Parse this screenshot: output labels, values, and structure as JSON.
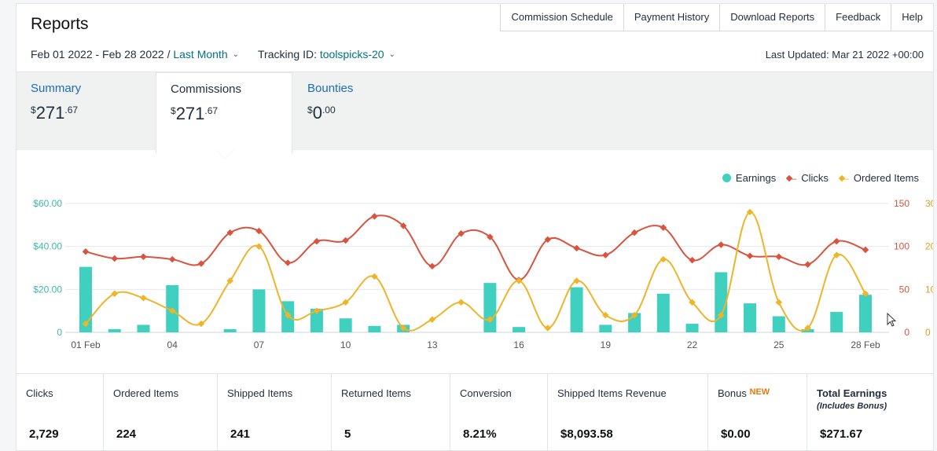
{
  "header": {
    "title": "Reports"
  },
  "toplinks": [
    "Commission Schedule",
    "Payment History",
    "Download Reports",
    "Feedback",
    "Help"
  ],
  "filters": {
    "date_range": "Feb 01 2022 - Feb 28 2022 /",
    "period": "Last Month",
    "tracking_label": "Tracking ID:",
    "tracking_id": "toolspicks-20"
  },
  "last_updated": "Last Updated: Mar 21 2022 +00:00",
  "tabs": [
    {
      "name": "Summary",
      "currency": "$",
      "whole": "271",
      "cents": ".67"
    },
    {
      "name": "Commissions",
      "currency": "$",
      "whole": "271",
      "cents": ".67"
    },
    {
      "name": "Bounties",
      "currency": "$",
      "whole": "0",
      "cents": ".00"
    }
  ],
  "legend": [
    {
      "label": "Earnings",
      "color": "#3fd0c0"
    },
    {
      "label": "Clicks",
      "color": "#d9533f"
    },
    {
      "label": "Ordered Items",
      "color": "#f0b429"
    }
  ],
  "chart_data": {
    "type": "bar",
    "x": [
      "01 Feb",
      "02",
      "03",
      "04",
      "05",
      "06",
      "07",
      "08",
      "09",
      "10",
      "11",
      "12",
      "13",
      "14",
      "15",
      "16",
      "17",
      "18",
      "19",
      "20",
      "21",
      "22",
      "23",
      "24",
      "25",
      "26",
      "27",
      "28 Feb"
    ],
    "x_tick_labels": [
      "01 Feb",
      "04",
      "07",
      "10",
      "13",
      "16",
      "19",
      "22",
      "25",
      "28 Feb"
    ],
    "y_left_ticks": [
      "$60.00",
      "$40.00",
      "$20.00",
      "0"
    ],
    "y_right1_ticks": [
      "150",
      "100",
      "50",
      "0"
    ],
    "y_right2_ticks": [
      "30",
      "20",
      "10",
      "0"
    ],
    "series": [
      {
        "name": "Earnings",
        "type": "bar",
        "axis": "left",
        "ylim": [
          0,
          60
        ],
        "values": [
          30.5,
          1.5,
          3.5,
          22,
          0,
          1.5,
          20,
          14.5,
          11,
          6.5,
          3,
          3.5,
          0,
          0,
          23,
          2.5,
          0,
          21,
          3.5,
          9,
          18,
          4,
          28,
          13.5,
          7.5,
          1.5,
          9.5,
          17.5
        ]
      },
      {
        "name": "Clicks",
        "type": "line",
        "axis": "right1",
        "ylim": [
          0,
          150
        ],
        "values": [
          94,
          86,
          88,
          85,
          80,
          116,
          118,
          81,
          106,
          107,
          135,
          124,
          77,
          115,
          111,
          61,
          108,
          98,
          90,
          116,
          122,
          84,
          102,
          89,
          88,
          79,
          106,
          96
        ]
      },
      {
        "name": "Ordered Items",
        "type": "line",
        "axis": "right2",
        "ylim": [
          0,
          30
        ],
        "values": [
          2,
          9,
          8,
          5,
          2,
          12,
          20,
          4,
          5,
          7,
          13,
          1,
          3,
          7,
          3,
          12,
          1,
          12,
          4,
          4,
          17,
          7,
          4,
          28,
          7,
          1,
          18,
          9
        ]
      }
    ]
  },
  "stats": [
    {
      "label": "Clicks",
      "value": "2,729"
    },
    {
      "label": "Ordered Items",
      "value": "224"
    },
    {
      "label": "Shipped Items",
      "value": "241"
    },
    {
      "label": "Returned Items",
      "value": "5"
    },
    {
      "label": "Conversion",
      "value": "8.21%"
    },
    {
      "label": "Shipped Items Revenue",
      "value": "$8,093.58"
    },
    {
      "label": "Bonus",
      "badge": "NEW",
      "value": "$0.00"
    },
    {
      "label": "Total Earnings",
      "sublabel": "(Includes Bonus)",
      "value": "$271.67"
    }
  ]
}
